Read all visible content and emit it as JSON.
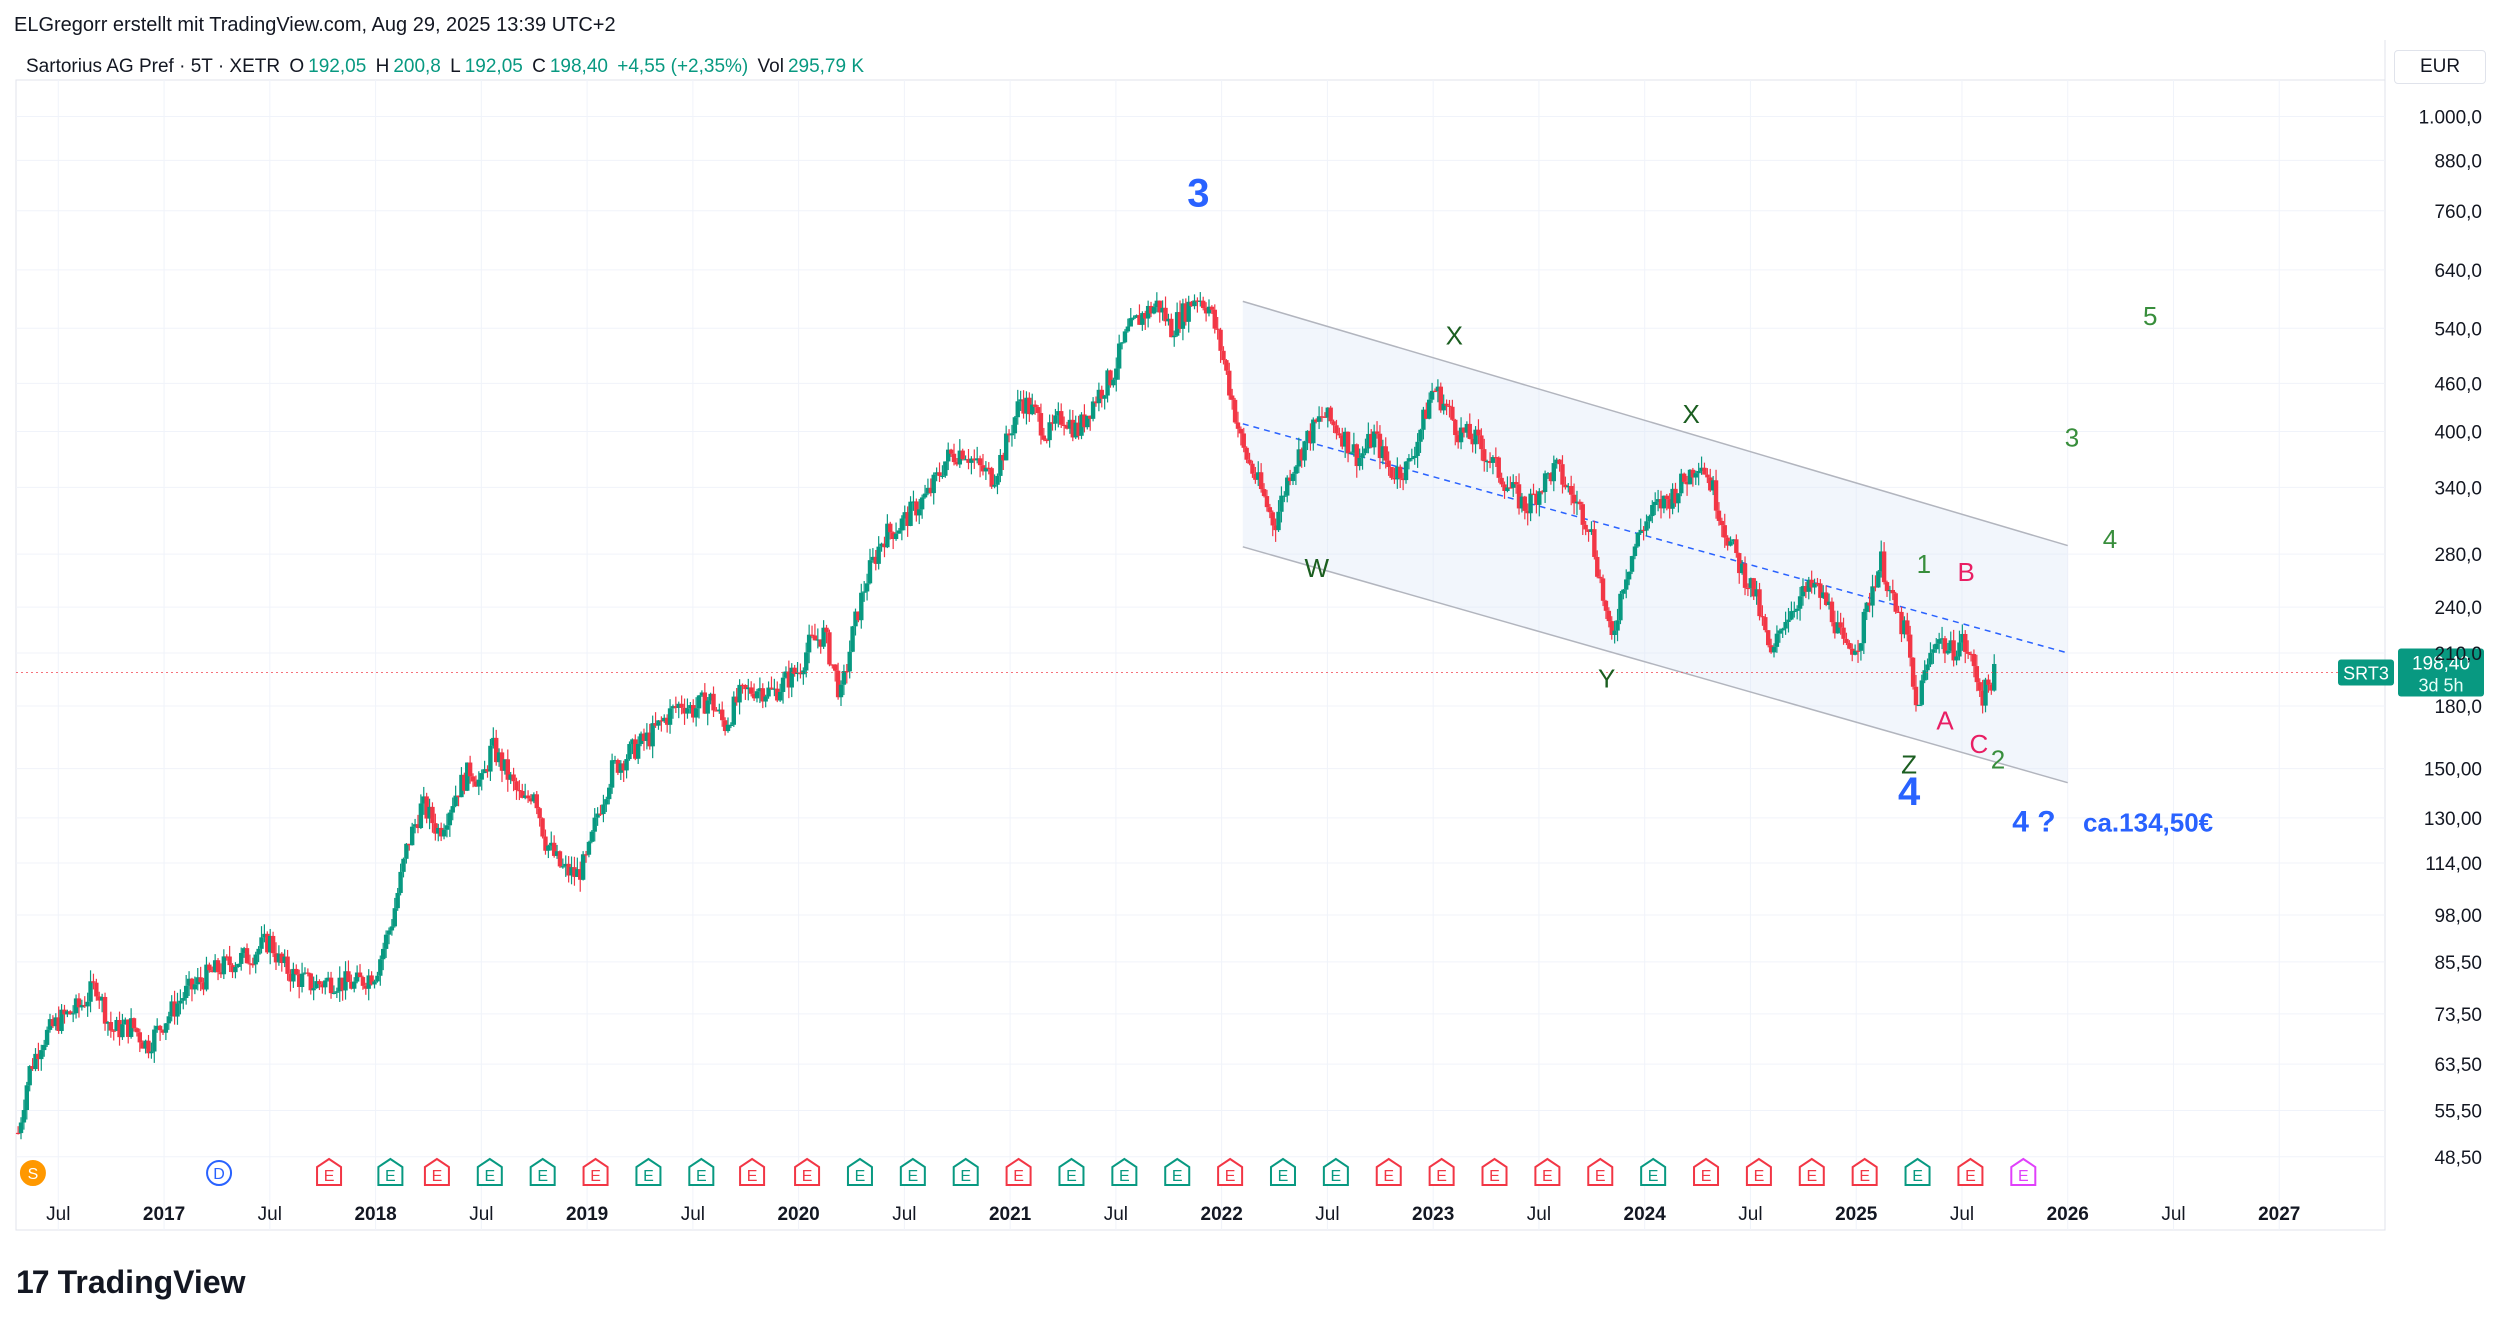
{
  "header": {
    "author_line": "ELGregorr erstellt mit TradingView.com, Aug 29, 2025 13:39 UTC+2"
  },
  "legend": {
    "symbol": "Sartorius AG Pref · 5T · XETR",
    "o_label": "O",
    "o_value": "192,05",
    "h_label": "H",
    "h_value": "200,8",
    "l_label": "L",
    "l_value": "192,05",
    "c_label": "C",
    "c_value": "198,40",
    "change": "+4,55 (+2,35%)",
    "vol_label": "Vol",
    "vol_value": "295,79 K"
  },
  "currency": "EUR",
  "price_label": {
    "ticker": "SRT3",
    "price": "198,40",
    "countdown": "3d 5h"
  },
  "footer": {
    "brand": "TradingView",
    "logo_icon": "tradingview-logo-icon"
  },
  "colors": {
    "up": "#089981",
    "down": "#f23645",
    "wave_blue": "#2962ff",
    "wave_green": "#388e3c",
    "wave_dark": "#1b5e20",
    "wave_red": "#e91e63",
    "grid": "#f0f3fa",
    "channel": "#dbe5f7"
  },
  "chart_data": {
    "type": "candlestick",
    "scale": "log",
    "ylim": [
      46,
      1080
    ],
    "y_ticks": [
      "1.000,0",
      "880,0",
      "760,0",
      "640,0",
      "540,0",
      "460,0",
      "400,0",
      "340,0",
      "280,0",
      "240,0",
      "210,0",
      "180,0",
      "150,00",
      "130,00",
      "114,00",
      "98,00",
      "85,50",
      "73,50",
      "63,50",
      "55,50",
      "48,50"
    ],
    "y_tick_values": [
      1000,
      880,
      760,
      640,
      540,
      460,
      400,
      340,
      280,
      240,
      210,
      180,
      150,
      130,
      114,
      98,
      85.5,
      73.5,
      63.5,
      55.5,
      48.5
    ],
    "x_ticks": [
      {
        "label": "Jul",
        "t": 2016.5,
        "bold": false
      },
      {
        "label": "2017",
        "t": 2017.0,
        "bold": true
      },
      {
        "label": "Jul",
        "t": 2017.5,
        "bold": false
      },
      {
        "label": "2018",
        "t": 2018.0,
        "bold": true
      },
      {
        "label": "Jul",
        "t": 2018.5,
        "bold": false
      },
      {
        "label": "2019",
        "t": 2019.0,
        "bold": true
      },
      {
        "label": "Jul",
        "t": 2019.5,
        "bold": false
      },
      {
        "label": "2020",
        "t": 2020.0,
        "bold": true
      },
      {
        "label": "Jul",
        "t": 2020.5,
        "bold": false
      },
      {
        "label": "2021",
        "t": 2021.0,
        "bold": true
      },
      {
        "label": "Jul",
        "t": 2021.5,
        "bold": false
      },
      {
        "label": "2022",
        "t": 2022.0,
        "bold": true
      },
      {
        "label": "Jul",
        "t": 2022.5,
        "bold": false
      },
      {
        "label": "2023",
        "t": 2023.0,
        "bold": true
      },
      {
        "label": "Jul",
        "t": 2023.5,
        "bold": false
      },
      {
        "label": "2024",
        "t": 2024.0,
        "bold": true
      },
      {
        "label": "Jul",
        "t": 2024.5,
        "bold": false
      },
      {
        "label": "2025",
        "t": 2025.0,
        "bold": true
      },
      {
        "label": "Jul",
        "t": 2025.5,
        "bold": false
      },
      {
        "label": "2026",
        "t": 2026.0,
        "bold": true
      },
      {
        "label": "Jul",
        "t": 2026.5,
        "bold": false
      },
      {
        "label": "2027",
        "t": 2027.0,
        "bold": true
      }
    ],
    "xlim": [
      2016.3,
      2027.5
    ],
    "last_price": 198.4,
    "price_path": [
      [
        2016.31,
        52
      ],
      [
        2016.36,
        62
      ],
      [
        2016.42,
        68
      ],
      [
        2016.5,
        72
      ],
      [
        2016.6,
        75
      ],
      [
        2016.68,
        80
      ],
      [
        2016.75,
        70
      ],
      [
        2016.85,
        71
      ],
      [
        2016.92,
        67
      ],
      [
        2017.0,
        72
      ],
      [
        2017.1,
        78
      ],
      [
        2017.2,
        82
      ],
      [
        2017.3,
        85
      ],
      [
        2017.4,
        87
      ],
      [
        2017.5,
        91
      ],
      [
        2017.55,
        85
      ],
      [
        2017.62,
        82
      ],
      [
        2017.7,
        80
      ],
      [
        2017.8,
        81
      ],
      [
        2017.9,
        80
      ],
      [
        2018.0,
        83
      ],
      [
        2018.08,
        97
      ],
      [
        2018.15,
        120
      ],
      [
        2018.22,
        135
      ],
      [
        2018.3,
        125
      ],
      [
        2018.38,
        140
      ],
      [
        2018.45,
        150
      ],
      [
        2018.5,
        143
      ],
      [
        2018.55,
        160
      ],
      [
        2018.62,
        148
      ],
      [
        2018.7,
        135
      ],
      [
        2018.75,
        142
      ],
      [
        2018.8,
        122
      ],
      [
        2018.88,
        112
      ],
      [
        2018.95,
        110
      ],
      [
        2019.0,
        115
      ],
      [
        2019.05,
        132
      ],
      [
        2019.12,
        150
      ],
      [
        2019.2,
        157
      ],
      [
        2019.3,
        165
      ],
      [
        2019.38,
        175
      ],
      [
        2019.45,
        182
      ],
      [
        2019.5,
        178
      ],
      [
        2019.58,
        184
      ],
      [
        2019.65,
        170
      ],
      [
        2019.72,
        185
      ],
      [
        2019.8,
        190
      ],
      [
        2019.88,
        187
      ],
      [
        2019.95,
        195
      ],
      [
        2020.0,
        200
      ],
      [
        2020.05,
        215
      ],
      [
        2020.12,
        222
      ],
      [
        2020.2,
        185
      ],
      [
        2020.26,
        225
      ],
      [
        2020.32,
        260
      ],
      [
        2020.4,
        295
      ],
      [
        2020.48,
        305
      ],
      [
        2020.55,
        320
      ],
      [
        2020.62,
        335
      ],
      [
        2020.7,
        370
      ],
      [
        2020.78,
        380
      ],
      [
        2020.85,
        360
      ],
      [
        2020.92,
        350
      ],
      [
        2020.98,
        385
      ],
      [
        2021.05,
        440
      ],
      [
        2021.12,
        420
      ],
      [
        2021.18,
        395
      ],
      [
        2021.25,
        420
      ],
      [
        2021.32,
        400
      ],
      [
        2021.4,
        440
      ],
      [
        2021.48,
        470
      ],
      [
        2021.55,
        530
      ],
      [
        2021.62,
        560
      ],
      [
        2021.7,
        580
      ],
      [
        2021.76,
        540
      ],
      [
        2021.82,
        565
      ],
      [
        2021.88,
        595
      ],
      [
        2021.94,
        575
      ],
      [
        2022.0,
        505
      ],
      [
        2022.04,
        450
      ],
      [
        2022.1,
        380
      ],
      [
        2022.17,
        345
      ],
      [
        2022.25,
        305
      ],
      [
        2022.32,
        355
      ],
      [
        2022.4,
        390
      ],
      [
        2022.48,
        420
      ],
      [
        2022.56,
        400
      ],
      [
        2022.65,
        370
      ],
      [
        2022.72,
        395
      ],
      [
        2022.8,
        355
      ],
      [
        2022.88,
        360
      ],
      [
        2022.95,
        410
      ],
      [
        2023.0,
        455
      ],
      [
        2023.06,
        430
      ],
      [
        2023.12,
        400
      ],
      [
        2023.2,
        390
      ],
      [
        2023.28,
        365
      ],
      [
        2023.36,
        340
      ],
      [
        2023.44,
        320
      ],
      [
        2023.52,
        345
      ],
      [
        2023.58,
        360
      ],
      [
        2023.66,
        330
      ],
      [
        2023.74,
        305
      ],
      [
        2023.8,
        250
      ],
      [
        2023.84,
        215
      ],
      [
        2023.9,
        260
      ],
      [
        2023.98,
        300
      ],
      [
        2024.05,
        320
      ],
      [
        2024.12,
        330
      ],
      [
        2024.2,
        350
      ],
      [
        2024.26,
        370
      ],
      [
        2024.32,
        340
      ],
      [
        2024.38,
        300
      ],
      [
        2024.45,
        270
      ],
      [
        2024.52,
        250
      ],
      [
        2024.6,
        205
      ],
      [
        2024.65,
        230
      ],
      [
        2024.72,
        245
      ],
      [
        2024.8,
        255
      ],
      [
        2024.88,
        238
      ],
      [
        2024.95,
        210
      ],
      [
        2025.02,
        220
      ],
      [
        2025.08,
        258
      ],
      [
        2025.12,
        275
      ],
      [
        2025.18,
        238
      ],
      [
        2025.24,
        220
      ],
      [
        2025.28,
        178
      ],
      [
        2025.32,
        195
      ],
      [
        2025.38,
        222
      ],
      [
        2025.44,
        210
      ],
      [
        2025.5,
        218
      ],
      [
        2025.56,
        200
      ],
      [
        2025.6,
        185
      ],
      [
        2025.64,
        195
      ],
      [
        2025.66,
        198.4
      ]
    ],
    "channel": {
      "upper": [
        [
          2022.1,
          584
        ],
        [
          2026.0,
          287
        ]
      ],
      "lower": [
        [
          2022.1,
          286
        ],
        [
          2026.0,
          144
        ]
      ],
      "mid": [
        [
          2022.1,
          409
        ],
        [
          2026.0,
          210
        ]
      ]
    },
    "wave_labels": [
      {
        "text": "3",
        "t": 2021.89,
        "p": 770,
        "color": "wave_blue",
        "size": 40,
        "bold": true
      },
      {
        "text": "X",
        "t": 2023.1,
        "p": 515,
        "color": "wave_dark",
        "size": 26,
        "bold": false
      },
      {
        "text": "W",
        "t": 2022.45,
        "p": 262,
        "color": "wave_dark",
        "size": 26,
        "bold": false
      },
      {
        "text": "Y",
        "t": 2023.82,
        "p": 190,
        "color": "wave_dark",
        "size": 26,
        "bold": false
      },
      {
        "text": "X",
        "t": 2024.22,
        "p": 410,
        "color": "wave_dark",
        "size": 26,
        "bold": false
      },
      {
        "text": "Z",
        "t": 2025.25,
        "p": 148,
        "color": "wave_dark",
        "size": 26,
        "bold": false
      },
      {
        "text": "4",
        "t": 2025.25,
        "p": 135,
        "color": "wave_blue",
        "size": 40,
        "bold": true
      },
      {
        "text": "1",
        "t": 2025.32,
        "p": 265,
        "color": "wave_green",
        "size": 26,
        "bold": false
      },
      {
        "text": "B",
        "t": 2025.52,
        "p": 259,
        "color": "wave_red",
        "size": 26,
        "bold": false
      },
      {
        "text": "A",
        "t": 2025.42,
        "p": 168,
        "color": "wave_red",
        "size": 26,
        "bold": false
      },
      {
        "text": "C",
        "t": 2025.58,
        "p": 157,
        "color": "wave_red",
        "size": 26,
        "bold": false
      },
      {
        "text": "2",
        "t": 2025.67,
        "p": 150,
        "color": "wave_green",
        "size": 26,
        "bold": false
      },
      {
        "text": "3",
        "t": 2026.02,
        "p": 383,
        "color": "wave_green",
        "size": 26,
        "bold": false
      },
      {
        "text": "4",
        "t": 2026.2,
        "p": 285,
        "color": "wave_green",
        "size": 26,
        "bold": false
      },
      {
        "text": "5",
        "t": 2026.39,
        "p": 545,
        "color": "wave_green",
        "size": 26,
        "bold": false
      },
      {
        "text": "4 ?",
        "t": 2025.84,
        "p": 125,
        "color": "wave_blue",
        "size": 30,
        "bold": true
      },
      {
        "text": "ca.134,50€",
        "t": 2026.38,
        "p": 125,
        "color": "wave_blue",
        "size": 26,
        "bold": true
      }
    ],
    "event_markers": [
      {
        "type": "S",
        "t": 2016.38,
        "style": "circle-orange"
      },
      {
        "type": "D",
        "t": 2017.26,
        "style": "circle-blue"
      },
      {
        "type": "E",
        "t": 2017.78,
        "style": "red"
      },
      {
        "type": "E",
        "t": 2018.07,
        "style": "green"
      },
      {
        "type": "E",
        "t": 2018.29,
        "style": "red"
      },
      {
        "type": "E",
        "t": 2018.54,
        "style": "green"
      },
      {
        "type": "E",
        "t": 2018.79,
        "style": "green"
      },
      {
        "type": "E",
        "t": 2019.04,
        "style": "red"
      },
      {
        "type": "E",
        "t": 2019.29,
        "style": "green"
      },
      {
        "type": "E",
        "t": 2019.54,
        "style": "green"
      },
      {
        "type": "E",
        "t": 2019.78,
        "style": "red"
      },
      {
        "type": "E",
        "t": 2020.04,
        "style": "red"
      },
      {
        "type": "E",
        "t": 2020.29,
        "style": "green"
      },
      {
        "type": "E",
        "t": 2020.54,
        "style": "green"
      },
      {
        "type": "E",
        "t": 2020.79,
        "style": "green"
      },
      {
        "type": "E",
        "t": 2021.04,
        "style": "red"
      },
      {
        "type": "E",
        "t": 2021.29,
        "style": "green"
      },
      {
        "type": "E",
        "t": 2021.54,
        "style": "green"
      },
      {
        "type": "E",
        "t": 2021.79,
        "style": "green"
      },
      {
        "type": "E",
        "t": 2022.04,
        "style": "red"
      },
      {
        "type": "E",
        "t": 2022.29,
        "style": "green"
      },
      {
        "type": "E",
        "t": 2022.54,
        "style": "green"
      },
      {
        "type": "E",
        "t": 2022.79,
        "style": "red"
      },
      {
        "type": "E",
        "t": 2023.04,
        "style": "red"
      },
      {
        "type": "E",
        "t": 2023.29,
        "style": "red"
      },
      {
        "type": "E",
        "t": 2023.54,
        "style": "red"
      },
      {
        "type": "E",
        "t": 2023.79,
        "style": "red"
      },
      {
        "type": "E",
        "t": 2024.04,
        "style": "green"
      },
      {
        "type": "E",
        "t": 2024.29,
        "style": "red"
      },
      {
        "type": "E",
        "t": 2024.54,
        "style": "red"
      },
      {
        "type": "E",
        "t": 2024.79,
        "style": "red"
      },
      {
        "type": "E",
        "t": 2025.04,
        "style": "red"
      },
      {
        "type": "E",
        "t": 2025.29,
        "style": "green"
      },
      {
        "type": "E",
        "t": 2025.54,
        "style": "red"
      },
      {
        "type": "E",
        "t": 2025.79,
        "style": "purple"
      }
    ]
  }
}
